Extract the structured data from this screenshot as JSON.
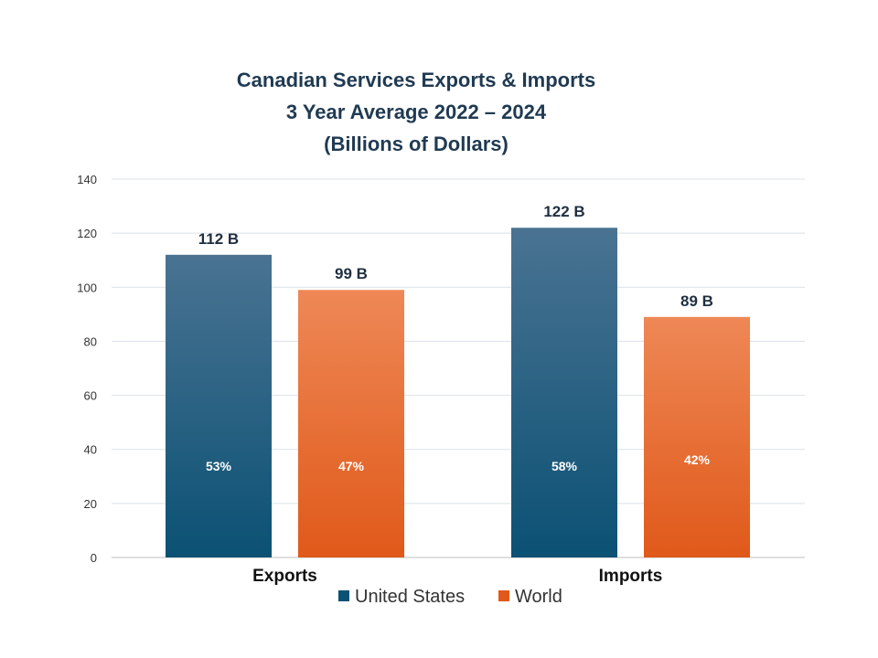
{
  "chart_data": {
    "type": "bar",
    "title_lines": [
      "Canadian Services Exports & Imports",
      "3 Year Average 2022 – 2024",
      "(Billions of Dollars)"
    ],
    "categories": [
      "Exports",
      "Imports"
    ],
    "series": [
      {
        "name": "United States",
        "values": [
          112,
          122
        ],
        "value_labels": [
          "112 B",
          "122 B"
        ],
        "percent_labels": [
          "53%",
          "58%"
        ],
        "color_top": "#4a7392",
        "color_bottom": "#0b5174"
      },
      {
        "name": "World",
        "values": [
          99,
          89
        ],
        "value_labels": [
          "99 B",
          "89 B"
        ],
        "percent_labels": [
          "47%",
          "42%"
        ],
        "color_top": "#ee8856",
        "color_bottom": "#e0591a"
      }
    ],
    "ylim": [
      0,
      140
    ],
    "yticks": [
      0,
      20,
      40,
      60,
      80,
      100,
      120,
      140
    ],
    "grid": true,
    "legend_position": "bottom-center",
    "xlabel": "",
    "ylabel": ""
  }
}
